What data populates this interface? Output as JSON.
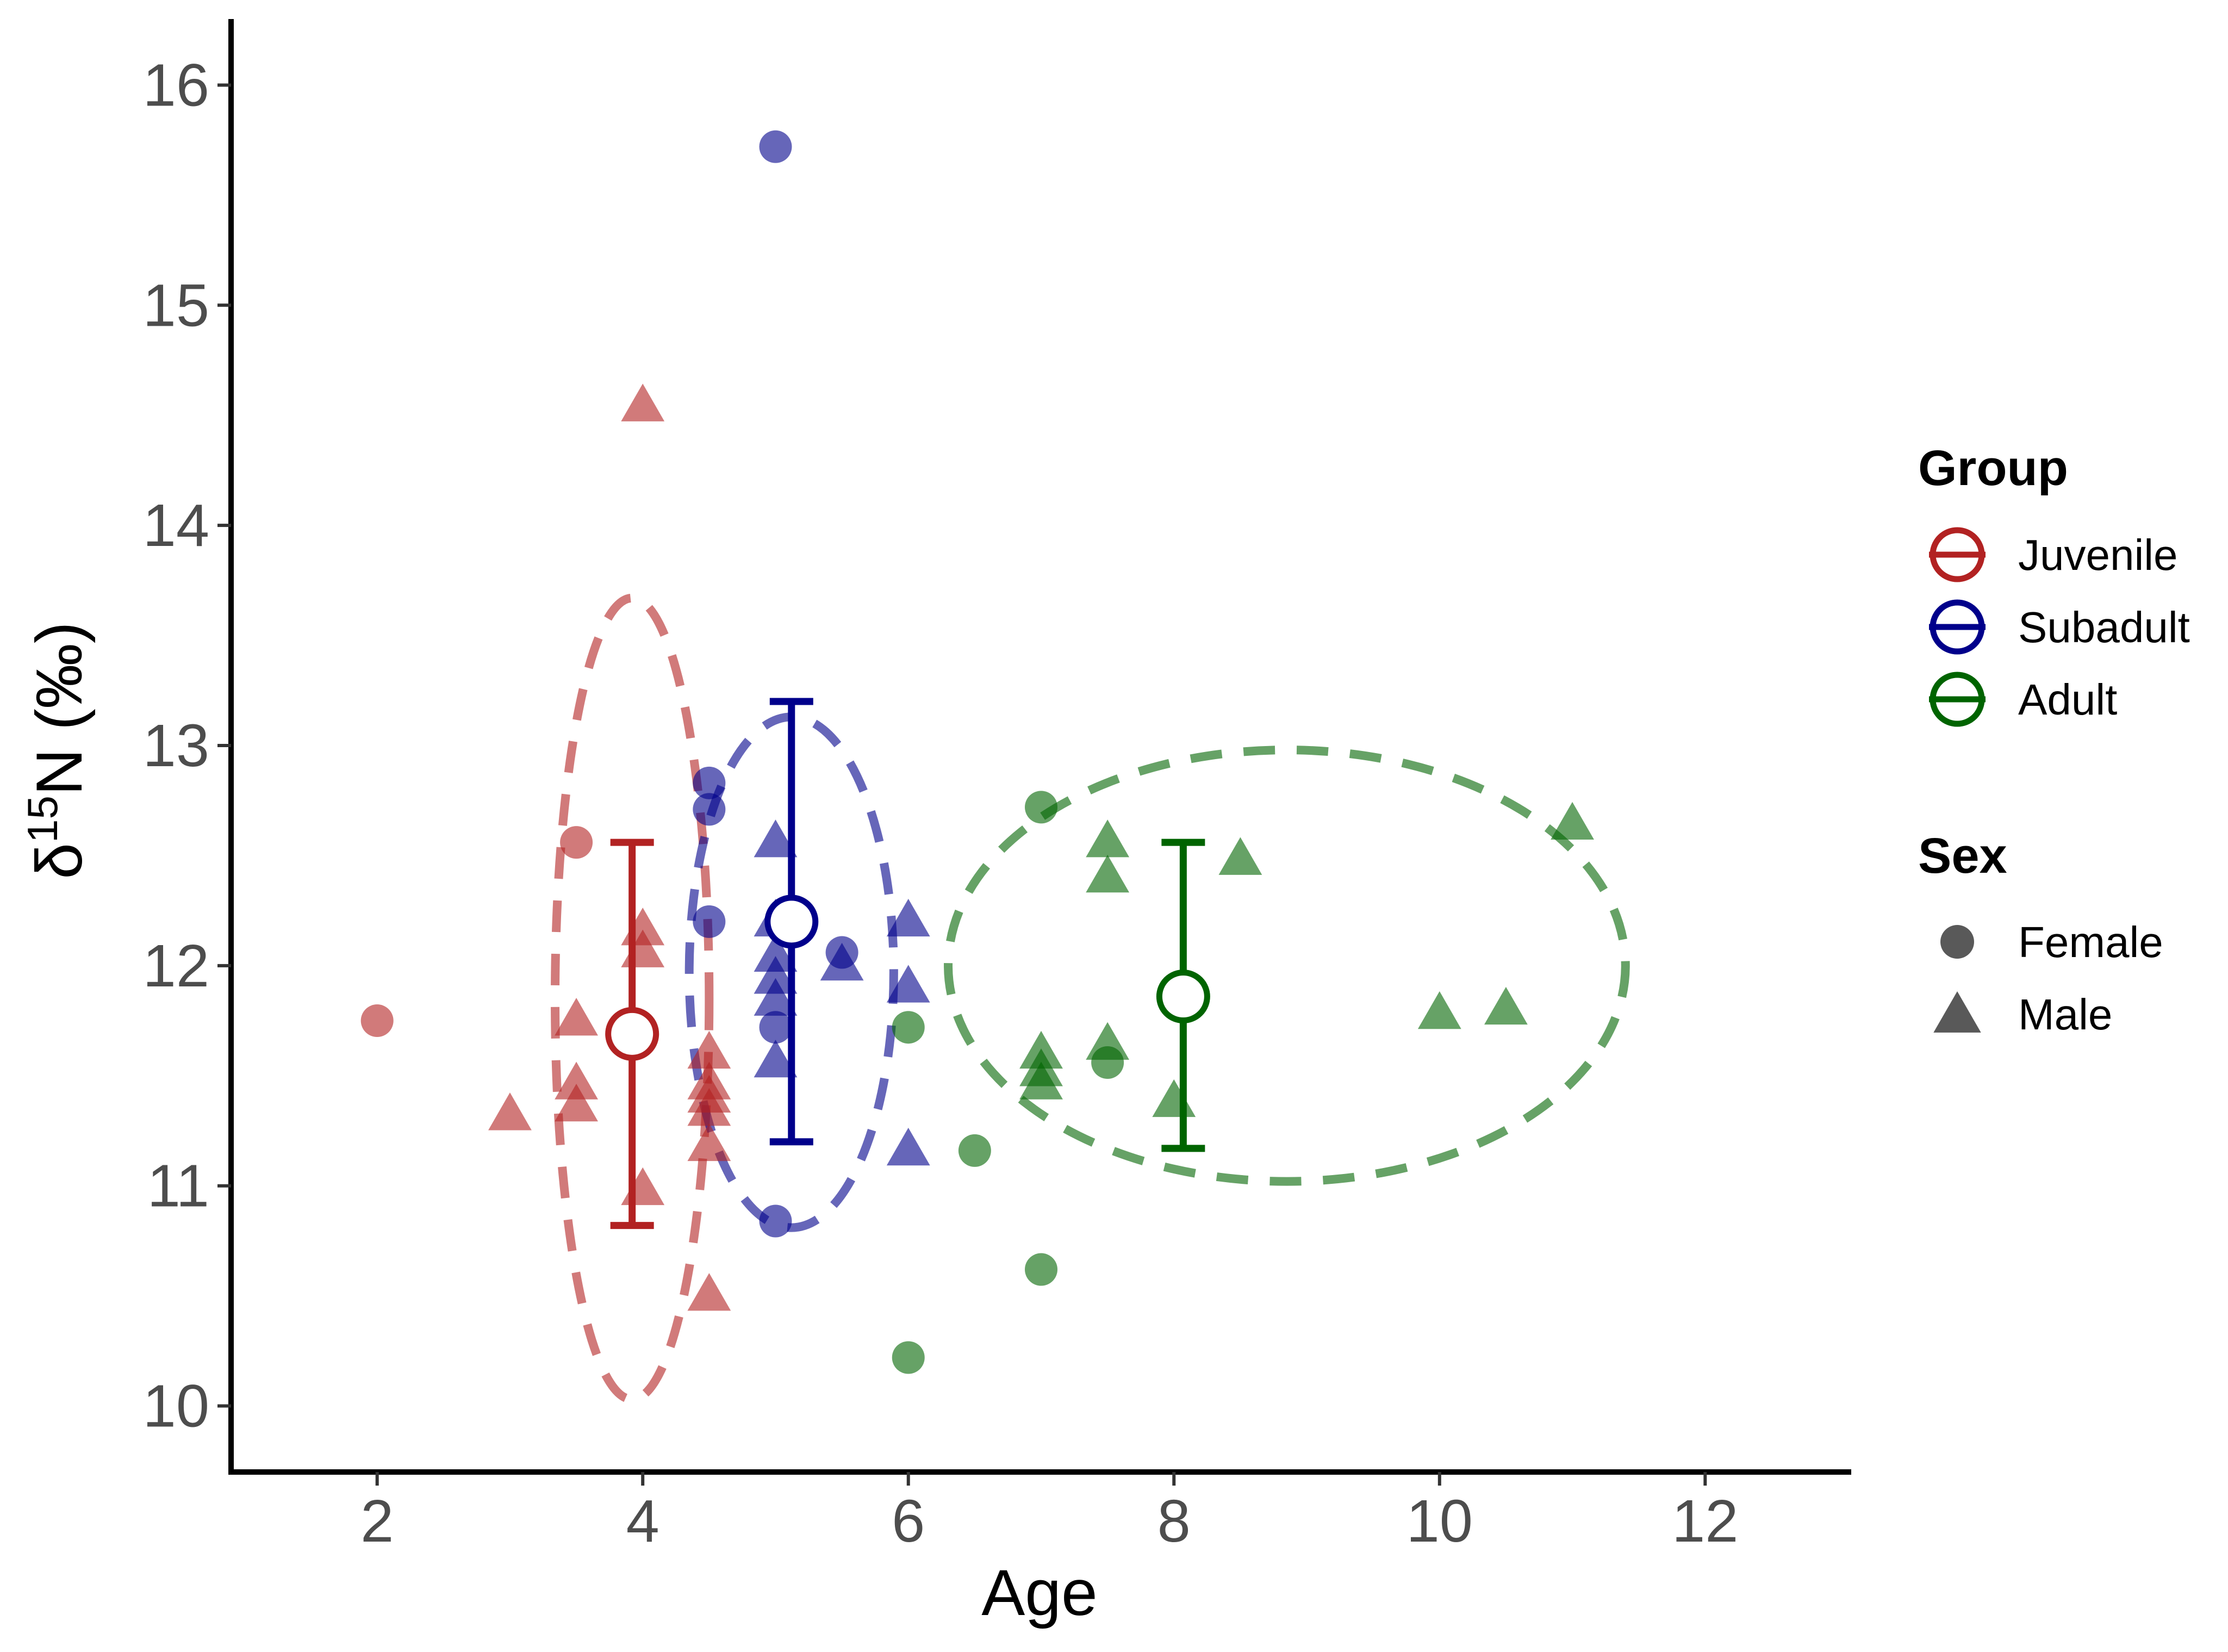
{
  "chart_data": {
    "type": "scatter",
    "xlabel": "Age",
    "ylabel": {
      "prefix": "δ",
      "superscript": "15",
      "main": "N (‰)"
    },
    "xlim": [
      0.9,
      13.1
    ],
    "ylim": [
      9.7,
      16.3
    ],
    "x_ticks": [
      2,
      4,
      6,
      8,
      10,
      12
    ],
    "y_ticks": [
      10,
      11,
      12,
      13,
      14,
      15,
      16
    ],
    "grid": false,
    "legend_position": "right",
    "groups": [
      {
        "name": "Juvenile",
        "color": "#B22222",
        "mean": {
          "x": 3.92,
          "y": 11.69
        },
        "error": [
          10.82,
          12.56
        ],
        "ellipse": {
          "cx": 3.92,
          "cy": 11.85,
          "rx": 0.58,
          "ry": 1.82
        },
        "points": [
          {
            "x": 2,
            "y": 11.75,
            "sex": "Female"
          },
          {
            "x": 3.5,
            "y": 12.56,
            "sex": "Female"
          },
          {
            "x": 3,
            "y": 11.32,
            "sex": "Male"
          },
          {
            "x": 3.5,
            "y": 11.36,
            "sex": "Male"
          },
          {
            "x": 3.5,
            "y": 11.46,
            "sex": "Male"
          },
          {
            "x": 3.5,
            "y": 11.75,
            "sex": "Male"
          },
          {
            "x": 4,
            "y": 14.54,
            "sex": "Male"
          },
          {
            "x": 4,
            "y": 12.16,
            "sex": "Male"
          },
          {
            "x": 4,
            "y": 12.06,
            "sex": "Male"
          },
          {
            "x": 4,
            "y": 10.98,
            "sex": "Male"
          },
          {
            "x": 4.5,
            "y": 11.6,
            "sex": "Male"
          },
          {
            "x": 4.5,
            "y": 11.46,
            "sex": "Male"
          },
          {
            "x": 4.5,
            "y": 11.4,
            "sex": "Male"
          },
          {
            "x": 4.5,
            "y": 11.34,
            "sex": "Male"
          },
          {
            "x": 4.5,
            "y": 11.18,
            "sex": "Male"
          },
          {
            "x": 4.5,
            "y": 10.5,
            "sex": "Male"
          }
        ]
      },
      {
        "name": "Subadult",
        "color": "#00008B",
        "mean": {
          "x": 5.12,
          "y": 12.2
        },
        "error": [
          11.2,
          13.2
        ],
        "ellipse": {
          "cx": 5.12,
          "cy": 11.97,
          "rx": 0.77,
          "ry": 1.16
        },
        "points": [
          {
            "x": 4.5,
            "y": 12.83,
            "sex": "Female"
          },
          {
            "x": 4.5,
            "y": 12.71,
            "sex": "Female"
          },
          {
            "x": 4.5,
            "y": 12.2,
            "sex": "Female"
          },
          {
            "x": 5,
            "y": 15.72,
            "sex": "Female"
          },
          {
            "x": 5,
            "y": 11.72,
            "sex": "Female"
          },
          {
            "x": 5,
            "y": 10.84,
            "sex": "Female"
          },
          {
            "x": 5.5,
            "y": 12.06,
            "sex": "Female"
          },
          {
            "x": 5,
            "y": 12.56,
            "sex": "Male"
          },
          {
            "x": 5,
            "y": 12.2,
            "sex": "Male"
          },
          {
            "x": 5,
            "y": 12.04,
            "sex": "Male"
          },
          {
            "x": 5,
            "y": 11.94,
            "sex": "Male"
          },
          {
            "x": 5,
            "y": 11.84,
            "sex": "Male"
          },
          {
            "x": 5,
            "y": 11.56,
            "sex": "Male"
          },
          {
            "x": 5.5,
            "y": 12.0,
            "sex": "Male"
          },
          {
            "x": 6,
            "y": 12.2,
            "sex": "Male"
          },
          {
            "x": 6,
            "y": 11.9,
            "sex": "Male"
          },
          {
            "x": 6,
            "y": 11.16,
            "sex": "Male"
          }
        ]
      },
      {
        "name": "Adult",
        "color": "#006400",
        "mean": {
          "x": 8.07,
          "y": 11.86
        },
        "error": [
          11.17,
          12.56
        ],
        "ellipse": {
          "cx": 8.85,
          "cy": 12.0,
          "rx": 2.55,
          "ry": 0.98
        },
        "points": [
          {
            "x": 6,
            "y": 11.72,
            "sex": "Female"
          },
          {
            "x": 6,
            "y": 10.22,
            "sex": "Female"
          },
          {
            "x": 6.5,
            "y": 11.16,
            "sex": "Female"
          },
          {
            "x": 7,
            "y": 12.72,
            "sex": "Female"
          },
          {
            "x": 7,
            "y": 10.62,
            "sex": "Female"
          },
          {
            "x": 7.5,
            "y": 11.56,
            "sex": "Female"
          },
          {
            "x": 7,
            "y": 11.6,
            "sex": "Male"
          },
          {
            "x": 7,
            "y": 11.52,
            "sex": "Male"
          },
          {
            "x": 7,
            "y": 11.46,
            "sex": "Male"
          },
          {
            "x": 7.5,
            "y": 12.56,
            "sex": "Male"
          },
          {
            "x": 7.5,
            "y": 12.4,
            "sex": "Male"
          },
          {
            "x": 7.5,
            "y": 11.64,
            "sex": "Male"
          },
          {
            "x": 8,
            "y": 11.38,
            "sex": "Male"
          },
          {
            "x": 8.5,
            "y": 12.48,
            "sex": "Male"
          },
          {
            "x": 10,
            "y": 11.78,
            "sex": "Male"
          },
          {
            "x": 10.5,
            "y": 11.8,
            "sex": "Male"
          },
          {
            "x": 11,
            "y": 12.64,
            "sex": "Male"
          }
        ]
      }
    ],
    "legend": {
      "group_title": "Group",
      "groups": [
        "Juvenile",
        "Subadult",
        "Adult"
      ],
      "sex_title": "Sex",
      "sexes": [
        "Female",
        "Male"
      ],
      "sex_color": "#595959"
    }
  }
}
